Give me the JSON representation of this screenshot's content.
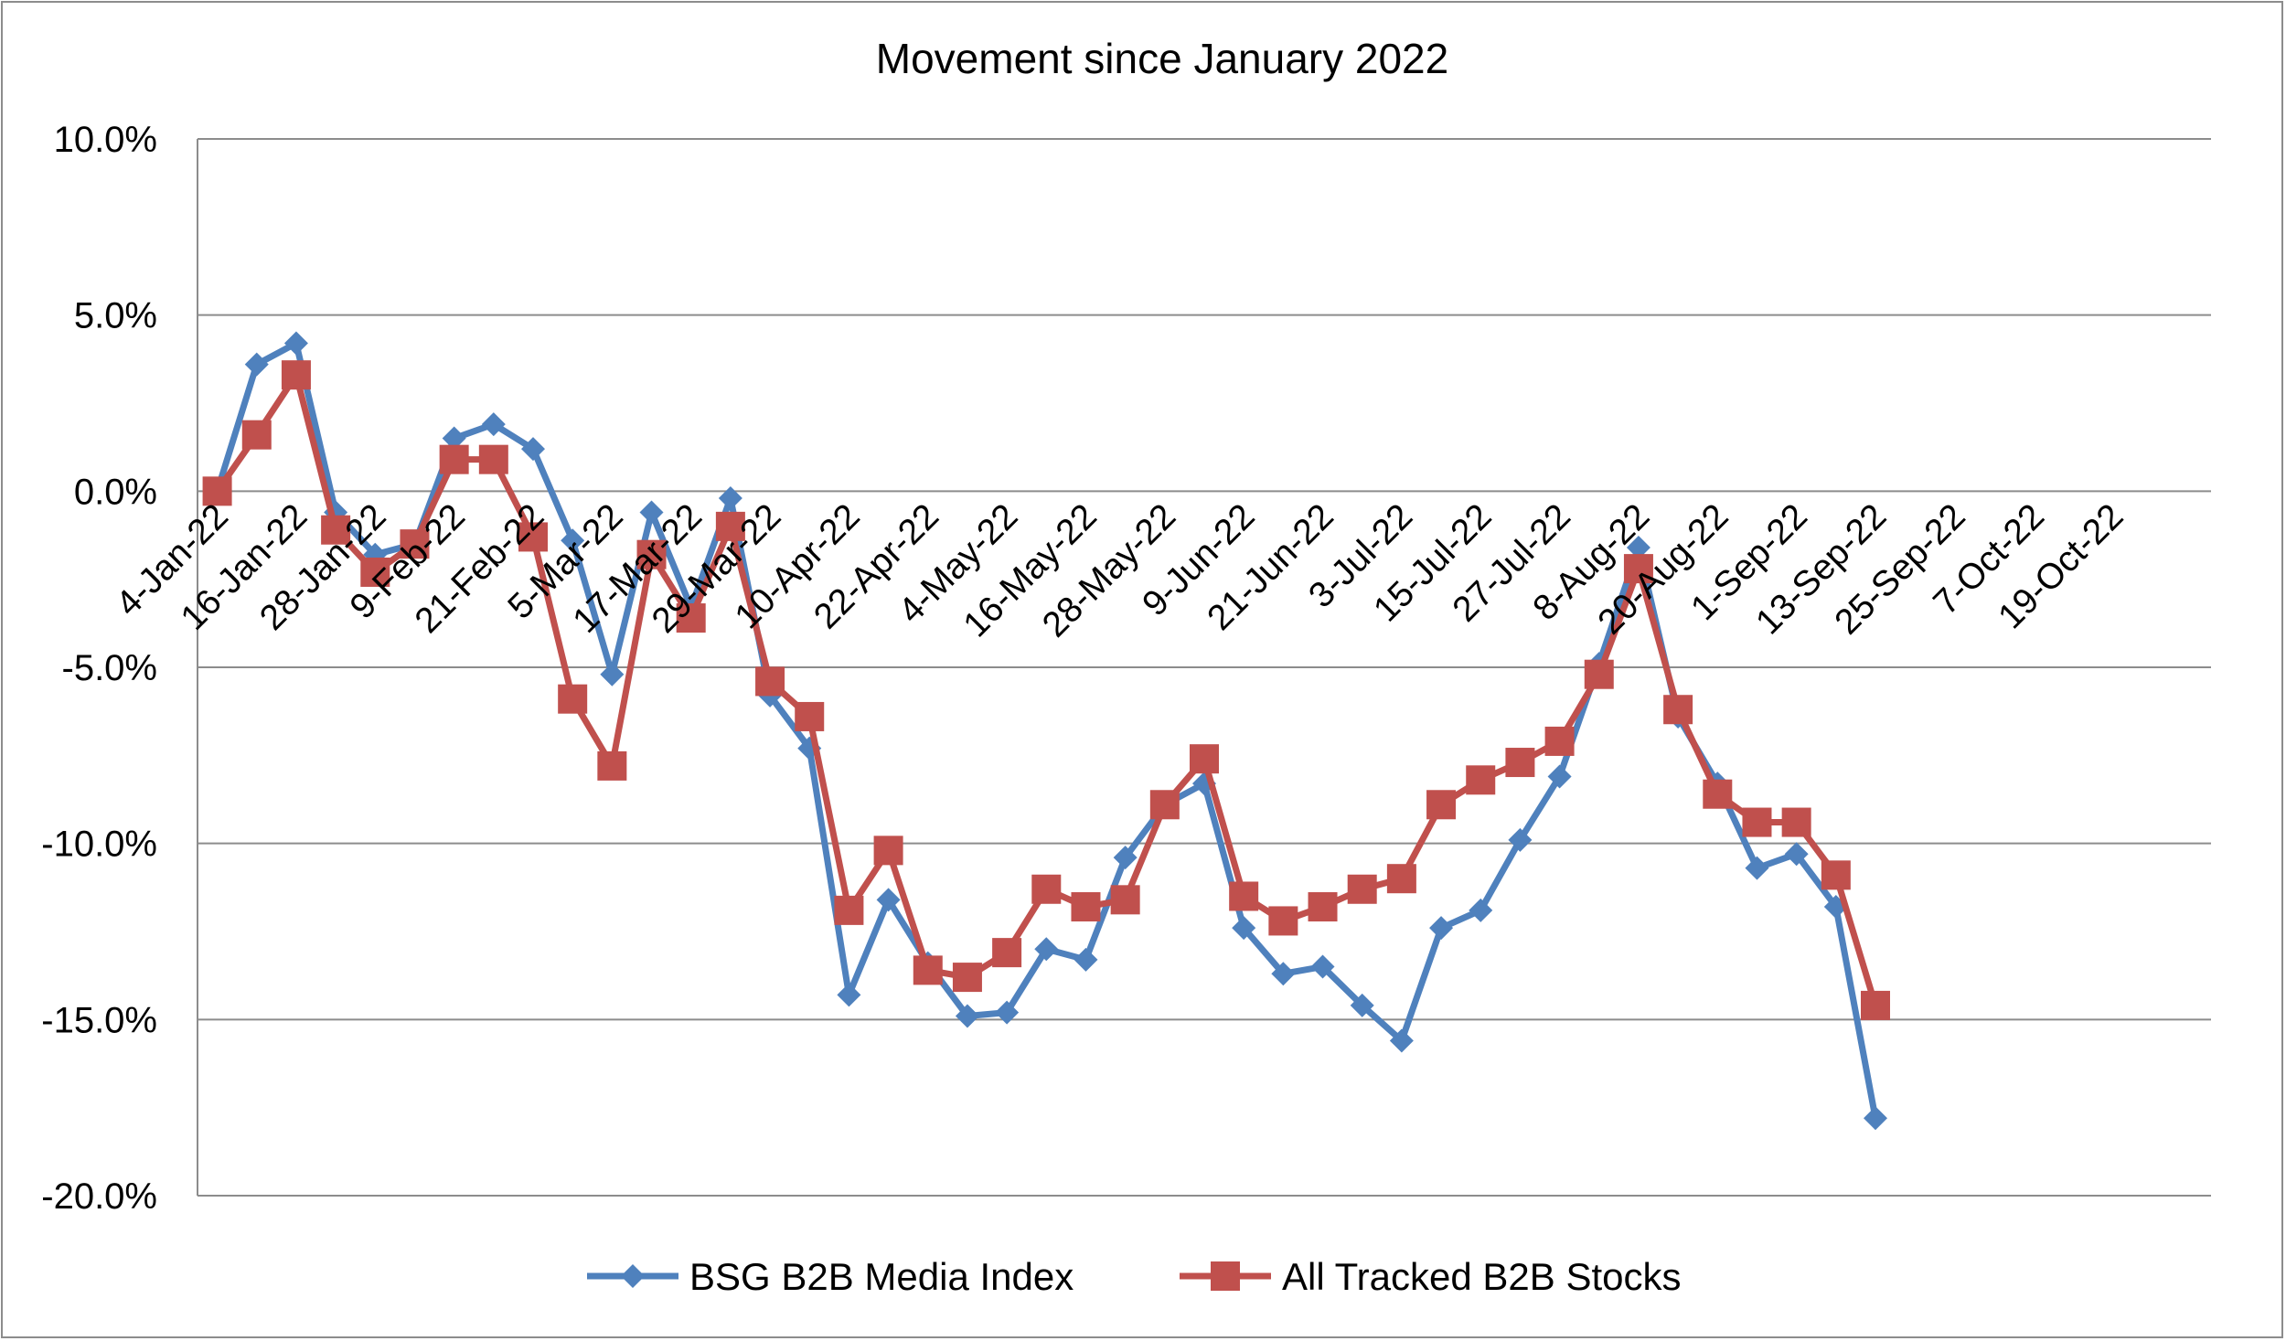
{
  "chart_data": {
    "type": "line",
    "title": "Movement since January 2022",
    "xlabel": "",
    "ylabel": "",
    "ylim": [
      -20,
      10
    ],
    "y_ticks": [
      10,
      5,
      0,
      -5,
      -10,
      -15,
      -20
    ],
    "y_tick_labels": [
      "10.0%",
      "5.0%",
      "0.0%",
      "-5.0%",
      "-10.0%",
      "-15.0%",
      "-20.0%"
    ],
    "x": [
      "4-Jan-22",
      "10-Jan-22",
      "16-Jan-22",
      "22-Jan-22",
      "28-Jan-22",
      "3-Feb-22",
      "9-Feb-22",
      "15-Feb-22",
      "21-Feb-22",
      "27-Feb-22",
      "5-Mar-22",
      "11-Mar-22",
      "17-Mar-22",
      "23-Mar-22",
      "29-Mar-22",
      "4-Apr-22",
      "10-Apr-22",
      "16-Apr-22",
      "22-Apr-22",
      "28-Apr-22",
      "4-May-22",
      "10-May-22",
      "16-May-22",
      "22-May-22",
      "28-May-22",
      "3-Jun-22",
      "9-Jun-22",
      "15-Jun-22",
      "21-Jun-22",
      "27-Jun-22",
      "3-Jul-22",
      "9-Jul-22",
      "15-Jul-22",
      "21-Jul-22",
      "27-Jul-22",
      "2-Aug-22",
      "8-Aug-22",
      "14-Aug-22",
      "20-Aug-22",
      "26-Aug-22",
      "1-Sep-22",
      "7-Sep-22",
      "13-Sep-22",
      "19-Sep-22",
      "25-Sep-22",
      "1-Oct-22",
      "7-Oct-22",
      "13-Oct-22",
      "19-Oct-22",
      "25-Oct-22",
      "31-Oct-22"
    ],
    "x_tick_labels": [
      "4-Jan-22",
      "16-Jan-22",
      "28-Jan-22",
      "9-Feb-22",
      "21-Feb-22",
      "5-Mar-22",
      "17-Mar-22",
      "29-Mar-22",
      "10-Apr-22",
      "22-Apr-22",
      "4-May-22",
      "16-May-22",
      "28-May-22",
      "9-Jun-22",
      "21-Jun-22",
      "3-Jul-22",
      "15-Jul-22",
      "27-Jul-22",
      "8-Aug-22",
      "20-Aug-22",
      "1-Sep-22",
      "13-Sep-22",
      "25-Sep-22",
      "7-Oct-22",
      "19-Oct-22"
    ],
    "grid": "horizontal",
    "legend_position": "bottom",
    "series": [
      {
        "name": "BSG B2B Media Index",
        "color": "#4f81bd",
        "marker": "diamond",
        "points": [
          {
            "x": "4-Jan-22",
            "y": 0.0
          },
          {
            "x": "10-Jan-22",
            "y": 3.6
          },
          {
            "x": "16-Jan-22",
            "y": 4.2
          },
          {
            "x": "22-Jan-22",
            "y": -0.6
          },
          {
            "x": "28-Jan-22",
            "y": -1.8
          },
          {
            "x": "3-Feb-22",
            "y": -1.5
          },
          {
            "x": "9-Feb-22",
            "y": 1.5
          },
          {
            "x": "15-Feb-22",
            "y": 1.9
          },
          {
            "x": "21-Feb-22",
            "y": 1.2
          },
          {
            "x": "27-Feb-22",
            "y": -1.4
          },
          {
            "x": "5-Mar-22",
            "y": -5.2
          },
          {
            "x": "11-Mar-22",
            "y": -0.6
          },
          {
            "x": "17-Mar-22",
            "y": -3.3
          },
          {
            "x": "23-Mar-22",
            "y": -0.2
          },
          {
            "x": "29-Mar-22",
            "y": -5.8
          },
          {
            "x": "4-Apr-22",
            "y": -7.3
          },
          {
            "x": "10-Apr-22",
            "y": -14.3
          },
          {
            "x": "16-Apr-22",
            "y": -11.6
          },
          {
            "x": "22-Apr-22",
            "y": -13.4
          },
          {
            "x": "28-Apr-22",
            "y": -14.9
          },
          {
            "x": "4-May-22",
            "y": -14.8
          },
          {
            "x": "10-May-22",
            "y": -13.0
          },
          {
            "x": "16-May-22",
            "y": -13.3
          },
          {
            "x": "22-May-22",
            "y": -10.4
          },
          {
            "x": "28-May-22",
            "y": -8.9
          },
          {
            "x": "3-Jun-22",
            "y": -8.3
          },
          {
            "x": "9-Jun-22",
            "y": -12.4
          },
          {
            "x": "15-Jun-22",
            "y": -13.7
          },
          {
            "x": "21-Jun-22",
            "y": -13.5
          },
          {
            "x": "27-Jun-22",
            "y": -14.6
          },
          {
            "x": "3-Jul-22",
            "y": -15.6
          },
          {
            "x": "9-Jul-22",
            "y": -12.4
          },
          {
            "x": "15-Jul-22",
            "y": -11.9
          },
          {
            "x": "21-Jul-22",
            "y": -9.9
          },
          {
            "x": "27-Jul-22",
            "y": -8.1
          },
          {
            "x": "2-Aug-22",
            "y": -4.9
          },
          {
            "x": "8-Aug-22",
            "y": -1.6
          },
          {
            "x": "14-Aug-22",
            "y": -6.4
          },
          {
            "x": "20-Aug-22",
            "y": -8.3
          },
          {
            "x": "26-Aug-22",
            "y": -10.7
          },
          {
            "x": "1-Sep-22",
            "y": -10.3
          },
          {
            "x": "7-Sep-22",
            "y": -11.8
          },
          {
            "x": "13-Sep-22",
            "y": -17.8
          }
        ]
      },
      {
        "name": "All Tracked B2B Stocks",
        "color": "#c0504d",
        "marker": "square",
        "points": [
          {
            "x": "4-Jan-22",
            "y": 0.0
          },
          {
            "x": "10-Jan-22",
            "y": 1.6
          },
          {
            "x": "16-Jan-22",
            "y": 3.3
          },
          {
            "x": "22-Jan-22",
            "y": -1.1
          },
          {
            "x": "28-Jan-22",
            "y": -2.3
          },
          {
            "x": "3-Feb-22",
            "y": -1.5
          },
          {
            "x": "9-Feb-22",
            "y": 0.9
          },
          {
            "x": "15-Feb-22",
            "y": 0.9
          },
          {
            "x": "21-Feb-22",
            "y": -1.3
          },
          {
            "x": "27-Feb-22",
            "y": -5.9
          },
          {
            "x": "5-Mar-22",
            "y": -7.8
          },
          {
            "x": "11-Mar-22",
            "y": -1.8
          },
          {
            "x": "17-Mar-22",
            "y": -3.6
          },
          {
            "x": "23-Mar-22",
            "y": -1.0
          },
          {
            "x": "29-Mar-22",
            "y": -5.4
          },
          {
            "x": "4-Apr-22",
            "y": -6.4
          },
          {
            "x": "10-Apr-22",
            "y": -11.9
          },
          {
            "x": "16-Apr-22",
            "y": -10.2
          },
          {
            "x": "22-Apr-22",
            "y": -13.6
          },
          {
            "x": "28-Apr-22",
            "y": -13.8
          },
          {
            "x": "4-May-22",
            "y": -13.1
          },
          {
            "x": "10-May-22",
            "y": -11.3
          },
          {
            "x": "16-May-22",
            "y": -11.8
          },
          {
            "x": "22-May-22",
            "y": -11.6
          },
          {
            "x": "28-May-22",
            "y": -8.9
          },
          {
            "x": "3-Jun-22",
            "y": -7.6
          },
          {
            "x": "9-Jun-22",
            "y": -11.5
          },
          {
            "x": "15-Jun-22",
            "y": -12.2
          },
          {
            "x": "21-Jun-22",
            "y": -11.8
          },
          {
            "x": "27-Jun-22",
            "y": -11.3
          },
          {
            "x": "3-Jul-22",
            "y": -11.0
          },
          {
            "x": "9-Jul-22",
            "y": -8.9
          },
          {
            "x": "15-Jul-22",
            "y": -8.2
          },
          {
            "x": "21-Jul-22",
            "y": -7.7
          },
          {
            "x": "27-Jul-22",
            "y": -7.1
          },
          {
            "x": "2-Aug-22",
            "y": -5.2
          },
          {
            "x": "8-Aug-22",
            "y": -2.2
          },
          {
            "x": "14-Aug-22",
            "y": -6.2
          },
          {
            "x": "20-Aug-22",
            "y": -8.6
          },
          {
            "x": "26-Aug-22",
            "y": -9.4
          },
          {
            "x": "1-Sep-22",
            "y": -9.4
          },
          {
            "x": "7-Sep-22",
            "y": -10.9
          },
          {
            "x": "13-Sep-22",
            "y": -14.6
          }
        ]
      }
    ]
  }
}
